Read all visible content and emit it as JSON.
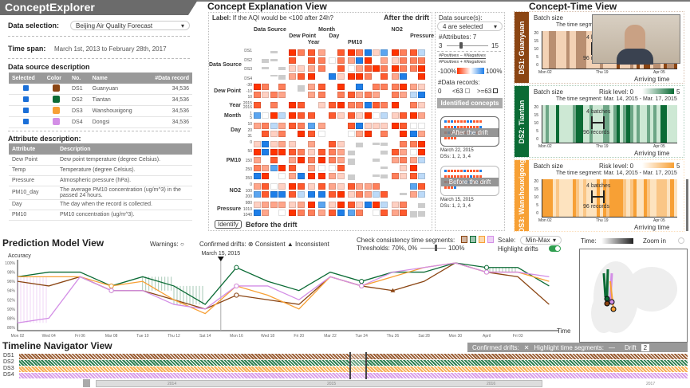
{
  "app": {
    "title": "ConceptExplorer"
  },
  "left": {
    "data_selection_label": "Data selection:",
    "data_selection_value": "Beijing Air Quality Forecast",
    "time_span_label": "Time span:",
    "time_span_value": "March 1st, 2013 to February 28th, 2017",
    "ds_title": "Data source description",
    "ds_headers": [
      "Selected",
      "Color",
      "No.",
      "Name",
      "#Data record"
    ],
    "ds_rows": [
      {
        "no": "DS1",
        "name": "Guanyuan",
        "records": "34,536",
        "color": "#8b4513",
        "selected": true
      },
      {
        "no": "DS2",
        "name": "Tiantan",
        "records": "34,536",
        "color": "#0b6b35",
        "selected": true
      },
      {
        "no": "DS3",
        "name": "Wanshouxigong",
        "records": "34,536",
        "color": "#f7a035",
        "selected": true
      },
      {
        "no": "DS4",
        "name": "Dongsi",
        "records": "34,536",
        "color": "#d38ee6",
        "selected": true
      }
    ],
    "attr_title": "Attribute description:",
    "attr_headers": [
      "Attribute",
      "Description"
    ],
    "attr_rows": [
      {
        "a": "Dew Point",
        "d": "Dew point temperature (degree Celsius)."
      },
      {
        "a": "Temp",
        "d": "Temperature (degree Celsius)."
      },
      {
        "a": "Pressure",
        "d": "Atmospheric pressure (hPa)."
      },
      {
        "a": "PM10_day",
        "d": "The average PM10 concentration (ug/m^3) in the passed 24 hours."
      },
      {
        "a": "Day",
        "d": "The day when the record is collected."
      },
      {
        "a": "PM10",
        "d": "PM10 concentration (ug/m^3)."
      }
    ]
  },
  "concept": {
    "title": "Concept Explanation View",
    "label_key": "Label:",
    "label_value": "If the AQI would be <100 after 24h?",
    "top_state": "After the drift",
    "bottom_state": "Before the drift",
    "identify": "Identify",
    "col_groups": [
      {
        "name": "Data Source",
        "n": 4
      },
      {
        "name": "Dew Point",
        "n": 2
      },
      {
        "name": "Year",
        "n": 1
      },
      {
        "name": "Month",
        "n": 1
      },
      {
        "name": "Day",
        "n": 2
      },
      {
        "name": "PM10",
        "n": 5
      },
      {
        "name": "NO2",
        "n": 2
      },
      {
        "name": "Pressure",
        "n": 2
      }
    ],
    "row_groups": [
      {
        "name": "Data Source",
        "n": 4,
        "ticks": [
          "DS1",
          "DS2",
          "DS3",
          "DS4"
        ]
      },
      {
        "name": "Dew Point",
        "n": 2,
        "ticks": [
          "-30",
          "-10",
          "10"
        ]
      },
      {
        "name": "Year",
        "n": 1,
        "ticks": [
          "2015",
          "2016"
        ]
      },
      {
        "name": "Month",
        "n": 1,
        "ticks": [
          "1",
          "5"
        ]
      },
      {
        "name": "Day",
        "n": 2,
        "ticks": [
          "10",
          "20",
          "31"
        ]
      },
      {
        "name": "PM10",
        "n": 5,
        "ticks": [
          "0",
          "50",
          "150",
          "250",
          "350"
        ]
      },
      {
        "name": "NO2",
        "n": 2,
        "ticks": [
          "0",
          "100",
          "200"
        ]
      },
      {
        "name": "Pressure",
        "n": 2,
        "ticks": [
          "980",
          "1010",
          "1040"
        ]
      }
    ],
    "colors": {
      "negative": "#ff3300",
      "positive": "#1e7ee8",
      "neutral": "#cccccc"
    }
  },
  "controls": {
    "ds_label": "Data source(s):",
    "ds_value": "4 are selected",
    "attr_label": "#Attributes:",
    "attr_value": "7",
    "attr_min": "3",
    "attr_max": "15",
    "formula_num": "#Positives − #Negatives",
    "formula_den": "#Positives + #Negatives",
    "scale_min": "-100%",
    "scale_max": "100%",
    "records_label": "#Data records:",
    "records_zero": "0",
    "records_lt": "<63",
    "records_ge": ">=63",
    "concepts_title": "Identified concepts",
    "concepts": [
      {
        "name": "After the drift",
        "date": "March 22, 2015",
        "dss": "DSs: 1, 2, 3, 4"
      },
      {
        "name": "Before the drift",
        "date": "March 15, 2015",
        "dss": "DSs: 1, 2, 3, 4"
      }
    ]
  },
  "concept_time": {
    "title": "Concept-Time View",
    "panels": [
      {
        "name": "DS1: Guanyuan",
        "color": "#8b4513",
        "light": "#f3d2b5",
        "risk_label": "Risk level: 0",
        "risk_max": "5",
        "segment": "The time segment: Mar. 14, 2015 - Mar. 17, 2015"
      },
      {
        "name": "DS2: Tiantan",
        "color": "#0b6b35",
        "light": "#cde8d4",
        "risk_label": "Risk level: 0",
        "risk_max": "5",
        "segment": "The time segment: Mar. 14, 2015 - Mar. 17, 2015"
      },
      {
        "name": "DS3: Wanshouxigong",
        "color": "#f7a035",
        "light": "#fde3bf",
        "risk_label": "Risk level: 0",
        "risk_max": "5",
        "segment": "The time segment: Mar. 14, 2015 - Mar. 17, 2015"
      }
    ],
    "y_label": "Batch size",
    "x_label": "Arriving time",
    "y_ticks": [
      "20",
      "15",
      "10",
      "5",
      "0"
    ],
    "x_ticks": [
      "Mon 02",
      "Thu 19",
      "Apr 05"
    ],
    "batches": "4 batches",
    "records": "96 records"
  },
  "prediction": {
    "title": "Prediction Model View",
    "warnings": "Warnings:",
    "confirmed": "Confirmed drifts:",
    "consistent": "Consistent",
    "inconsistent": "Inconsistent",
    "check": "Check consistency time segments:",
    "thresholds": "Thresholds: 70%,",
    "th_min": "0%",
    "th_max": "100%",
    "scale_label": "Scale:",
    "scale_value": "Min-Max",
    "highlight": "Highlight drifts",
    "time_label": "Time:",
    "zoom_label": "Zoom in",
    "marker": "March 15, 2015"
  },
  "chart_data": {
    "type": "line",
    "ylabel": "Accuracy",
    "xlabel": "Time",
    "ylim": [
      86,
      100
    ],
    "y_ticks": [
      "100%",
      "98%",
      "96%",
      "94%",
      "92%",
      "90%",
      "88%",
      "86%"
    ],
    "x_ticks": [
      "Mon 02",
      "Wed 04",
      "Fri 06",
      "Mar 08",
      "Tue 10",
      "Thu 12",
      "Sat 14",
      "Mon 16",
      "Wed 18",
      "Fri 20",
      "Mar 22",
      "Tue 24",
      "Thu 26",
      "Sat 28",
      "Mon 30",
      "April",
      "Fri 03"
    ],
    "x": [
      "2015-03-02",
      "2015-03-04",
      "2015-03-06",
      "2015-03-08",
      "2015-03-10",
      "2015-03-12",
      "2015-03-14",
      "2015-03-16",
      "2015-03-18",
      "2015-03-20",
      "2015-03-22",
      "2015-03-24",
      "2015-03-26",
      "2015-03-28",
      "2015-03-30",
      "2015-04-01",
      "2015-04-03",
      "2015-04-05"
    ],
    "series": [
      {
        "name": "DS1",
        "color": "#8b4513",
        "values": [
          96,
          95,
          97,
          94,
          94,
          92,
          90,
          93,
          92,
          91,
          97,
          95,
          94,
          96,
          100,
          98,
          97,
          91
        ]
      },
      {
        "name": "DS2",
        "color": "#0b6b35",
        "values": [
          97,
          98,
          98,
          95,
          97,
          95,
          91,
          99,
          96,
          94,
          98,
          96,
          98,
          98,
          100,
          99,
          99,
          95
        ]
      },
      {
        "name": "DS3",
        "color": "#f7a035",
        "values": [
          97,
          97,
          97,
          95,
          96,
          92,
          89,
          95,
          93,
          90,
          97,
          95,
          97,
          99,
          100,
          98,
          98,
          96
        ]
      },
      {
        "name": "DS4",
        "color": "#d38ee6",
        "values": [
          87,
          88,
          97,
          94,
          94,
          91,
          90,
          95,
          95,
          92,
          97,
          95,
          98,
          99,
          100,
          98,
          98,
          97
        ]
      }
    ]
  },
  "timeline": {
    "title": "Timeline Navigator View",
    "rows": [
      "DS1",
      "DS2",
      "DS3",
      "DS4"
    ],
    "confirmed": "Confirmed drifts:",
    "highlight": "Highlight time segments:",
    "drift": "Drift",
    "drift_count": "2",
    "years": [
      "2014",
      "2015",
      "2016",
      "2017"
    ]
  }
}
